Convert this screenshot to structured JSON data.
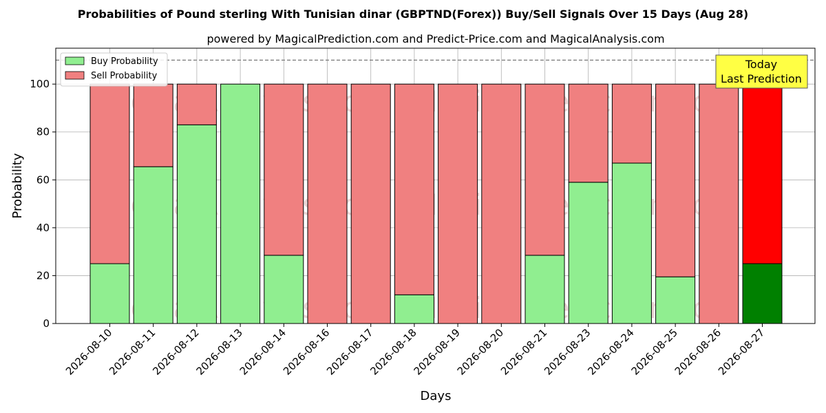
{
  "chart_data": {
    "type": "bar",
    "stacked": true,
    "title": "Probabilities of Pound sterling With Tunisian dinar (GBPTND(Forex)) Buy/Sell Signals Over 15 Days (Aug 28)",
    "subtitle": "powered by MagicalPrediction.com and Predict-Price.com and MagicalAnalysis.com",
    "xlabel": "Days",
    "ylabel": "Probability",
    "ylim": [
      0,
      115
    ],
    "yticks": [
      0,
      20,
      40,
      60,
      80,
      100
    ],
    "grid": true,
    "legend_position": "top-left",
    "reference_line": 110,
    "categories": [
      "2026-08-10",
      "2026-08-11",
      "2026-08-12",
      "2026-08-13",
      "2026-08-14",
      "2026-08-16",
      "2026-08-17",
      "2026-08-18",
      "2026-08-19",
      "2026-08-20",
      "2026-08-21",
      "2026-08-23",
      "2026-08-24",
      "2026-08-25",
      "2026-08-26",
      "2026-08-27"
    ],
    "series": [
      {
        "name": "Buy Probability",
        "color": "#90ee90",
        "values": [
          25,
          65.5,
          83,
          100,
          28.5,
          0,
          0,
          12,
          0,
          0,
          28.5,
          59,
          67,
          19.5,
          0,
          25
        ]
      },
      {
        "name": "Sell Probability",
        "color": "#f08080",
        "values": [
          75,
          34.5,
          17,
          0,
          71.5,
          100,
          100,
          88,
          100,
          100,
          71.5,
          41,
          33,
          80.5,
          100,
          75
        ]
      }
    ],
    "highlight": {
      "index": 15,
      "buy_color": "#008000",
      "sell_color": "#ff0000"
    },
    "annotation": {
      "lines": [
        "Today",
        "Last Prediction"
      ],
      "box_color": "#ffff44"
    },
    "watermarks": [
      "MagicalAnalysis.com",
      "MagicalPrediction.com"
    ]
  }
}
